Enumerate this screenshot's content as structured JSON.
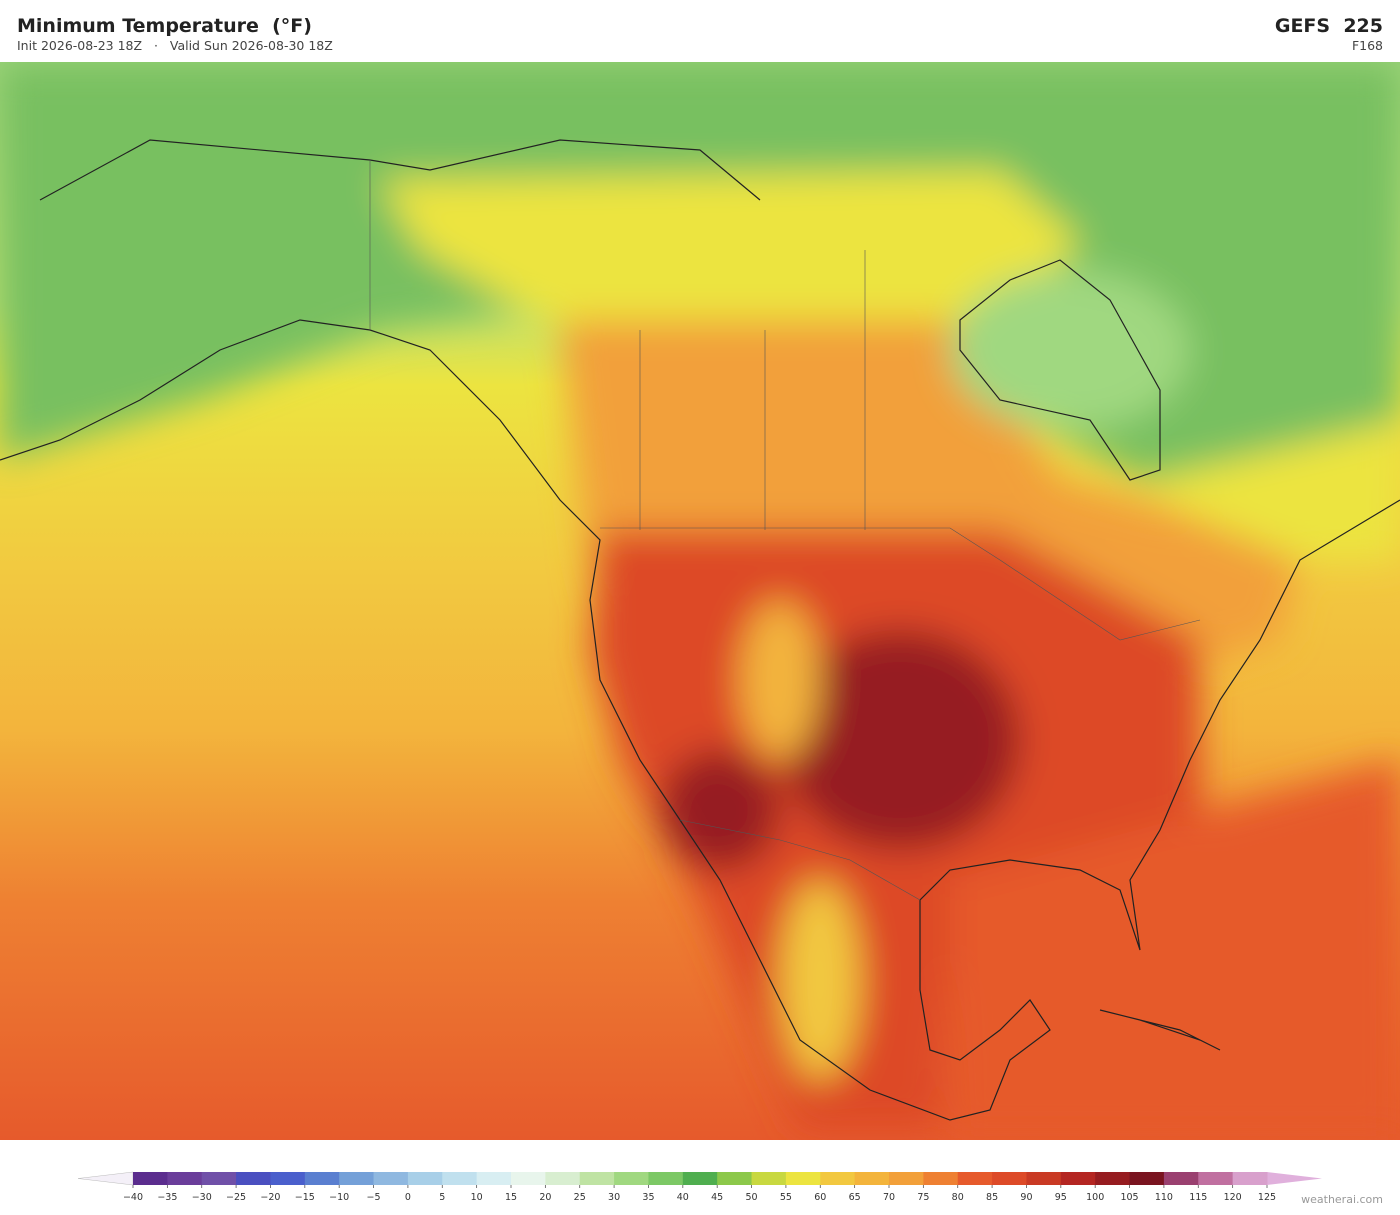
{
  "header": {
    "title": "Minimum Temperature  (°F)",
    "init": "Init 2026-08-23 18Z",
    "separator": "·",
    "valid": "Valid Sun 2026-08-30 18Z",
    "model": "GEFS  225",
    "forecast_hour": "F168"
  },
  "colorbar": {
    "ticks": [
      {
        "value": -40,
        "label": "−40"
      },
      {
        "value": -35,
        "label": "−35"
      },
      {
        "value": -30,
        "label": "−30"
      },
      {
        "value": -25,
        "label": "−25"
      },
      {
        "value": -20,
        "label": "−20"
      },
      {
        "value": -15,
        "label": "−15"
      },
      {
        "value": -10,
        "label": "−10"
      },
      {
        "value": -5,
        "label": "−5"
      },
      0,
      5,
      10,
      15,
      20,
      25,
      30,
      35,
      40,
      45,
      50,
      55,
      60,
      65,
      70,
      75,
      80,
      85,
      90,
      95,
      100,
      105,
      110,
      115,
      120,
      125
    ],
    "colors": [
      "#5b2d8e",
      "#6a3d9a",
      "#7050a8",
      "#4a4fc0",
      "#4a5fcc",
      "#5a7fd0",
      "#74a0d8",
      "#8fb8e0",
      "#a8cfe8",
      "#c0e0ee",
      "#d8eef2",
      "#e8f5ec",
      "#d8eed0",
      "#bfe3a3",
      "#a0d880",
      "#7cc865",
      "#4fae4f",
      "#8cc84a",
      "#c8d840",
      "#ece440",
      "#f2c840",
      "#f3b43c",
      "#f2a03a",
      "#ee8032",
      "#e65a2c",
      "#dd4a28",
      "#c93a24",
      "#b42622",
      "#961c20",
      "#7a1420",
      "#9a4070",
      "#c070a0",
      "#d8a0cc"
    ],
    "under_color": "#f4f0f8",
    "over_color": "#e0b0dc"
  },
  "footer": {
    "credit": "weatherai.com"
  }
}
